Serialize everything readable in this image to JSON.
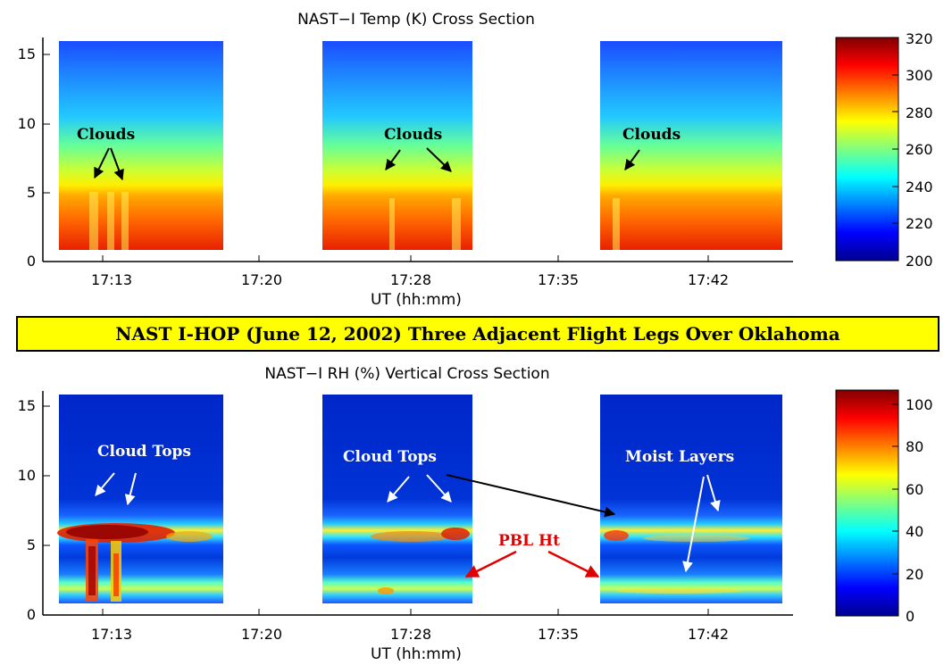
{
  "banner": "NAST I-HOP (June 12, 2002) Three Adjacent Flight Legs Over Oklahoma",
  "chart_data": [
    {
      "type": "heatmap",
      "title": "NAST−I Temp (K) Cross Section",
      "xlabel": "UT (hh:mm)",
      "ylabel": "",
      "x_ticks": [
        "17:13",
        "17:20",
        "17:28",
        "17:35",
        "17:42"
      ],
      "y_ticks": [
        0,
        5,
        10,
        15
      ],
      "ylim": [
        0,
        16
      ],
      "colorbar": {
        "min": 200,
        "max": 320,
        "ticks": [
          200,
          220,
          240,
          260,
          280,
          300,
          320
        ]
      },
      "annotations": [
        {
          "text": "Clouds",
          "color": "#000000"
        },
        {
          "text": "Clouds",
          "color": "#000000"
        },
        {
          "text": "Clouds",
          "color": "#000000"
        }
      ]
    },
    {
      "type": "heatmap",
      "title": "NAST−I RH (%) Vertical Cross Section",
      "xlabel": "UT (hh:mm)",
      "ylabel": "",
      "x_ticks": [
        "17:13",
        "17:20",
        "17:28",
        "17:35",
        "17:42"
      ],
      "y_ticks": [
        0,
        5,
        10,
        15
      ],
      "ylim": [
        0,
        16
      ],
      "colorbar": {
        "min": 0,
        "max": 100,
        "ticks": [
          0,
          20,
          40,
          60,
          80,
          100
        ]
      },
      "annotations": [
        {
          "text": "Cloud Tops",
          "color": "#ffffff"
        },
        {
          "text": "Cloud Tops",
          "color": "#ffffff"
        },
        {
          "text": "Moist Layers",
          "color": "#ffffff"
        },
        {
          "text": "PBL Ht",
          "color": "#e00000"
        }
      ]
    }
  ]
}
